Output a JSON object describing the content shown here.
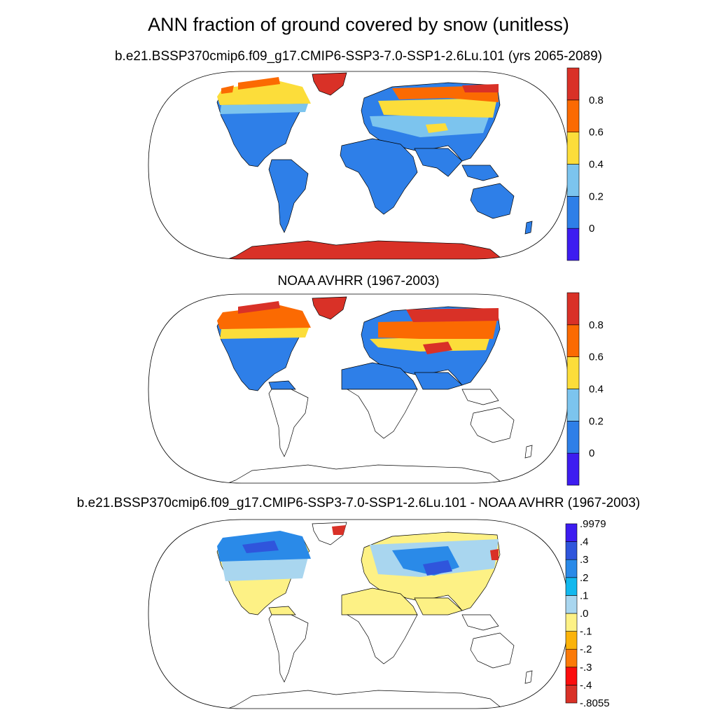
{
  "figure": {
    "title": "ANN fraction of ground covered by snow (unitless)"
  },
  "panels": [
    {
      "id": "model",
      "title": "b.e21.BSSP370cmip6.f09_g17.CMIP6-SSP3-7.0-SSP1-2.6Lu.101 (yrs 2065-2089)",
      "colorbar": {
        "labels": [
          "0",
          "0.2",
          "0.4",
          "0.6",
          "0.8"
        ],
        "colors": [
          "#3d1cf0",
          "#2e7fe8",
          "#7cc4ee",
          "#fcdd3a",
          "#fb6a02",
          "#d93127"
        ]
      }
    },
    {
      "id": "obs",
      "title": "NOAA AVHRR (1967-2003)",
      "colorbar": {
        "labels": [
          "0",
          "0.2",
          "0.4",
          "0.6",
          "0.8"
        ],
        "colors": [
          "#3d1cf0",
          "#2e7fe8",
          "#7cc4ee",
          "#fcdd3a",
          "#fb6a02",
          "#d93127"
        ]
      }
    },
    {
      "id": "diff",
      "title": "b.e21.BSSP370cmip6.f09_g17.CMIP6-SSP3-7.0-SSP1-2.6Lu.101 - NOAA AVHRR (1967-2003)",
      "colorbar": {
        "labels": [
          ".9979",
          ".4",
          ".3",
          ".2",
          ".1",
          ".0",
          "-.1",
          "-.2",
          "-.3",
          "-.4",
          "-.8055"
        ],
        "colors": [
          "#d93127",
          "#fb0d0d",
          "#fb7a08",
          "#fbb30a",
          "#fdf185",
          "#a9d6ef",
          "#12b8ee",
          "#2a8ae8",
          "#2f55dc",
          "#3d1cf0"
        ]
      }
    }
  ],
  "colors": {
    "land_outline": "#000000",
    "snow_low": "#2e7fe8",
    "snow_high": "#d93127",
    "diff_positive_small": "#fdf185"
  }
}
